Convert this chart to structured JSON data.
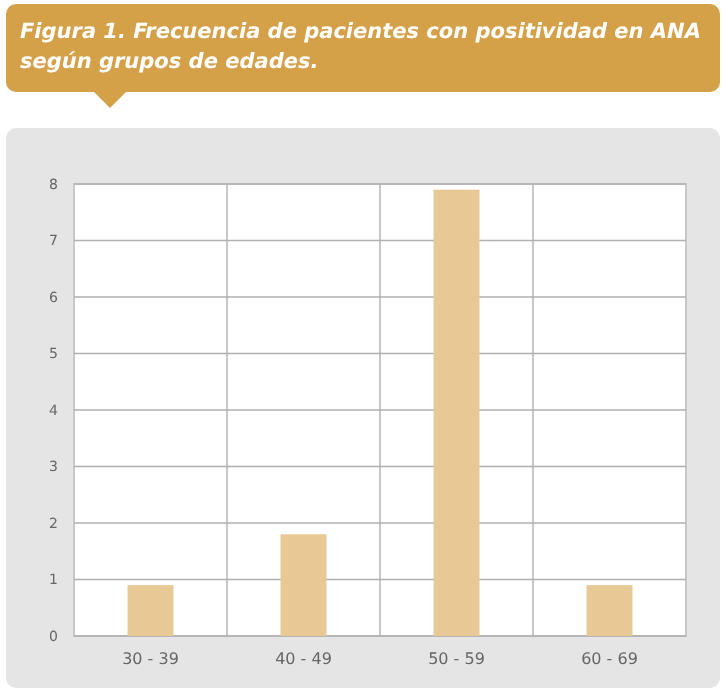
{
  "chart_data": {
    "type": "bar",
    "title": "Figura 1. Frecuencia de pacientes con positividad en ANA según grupos de edades.",
    "categories": [
      "30 - 39",
      "40 - 49",
      "50 - 59",
      "60 - 69"
    ],
    "values": [
      0.9,
      1.8,
      7.9,
      0.9
    ],
    "color": "#e8c995",
    "ylim": [
      0,
      8
    ],
    "yticks": [
      0,
      1,
      2,
      3,
      4,
      5,
      6,
      7,
      8
    ],
    "grid": true
  }
}
